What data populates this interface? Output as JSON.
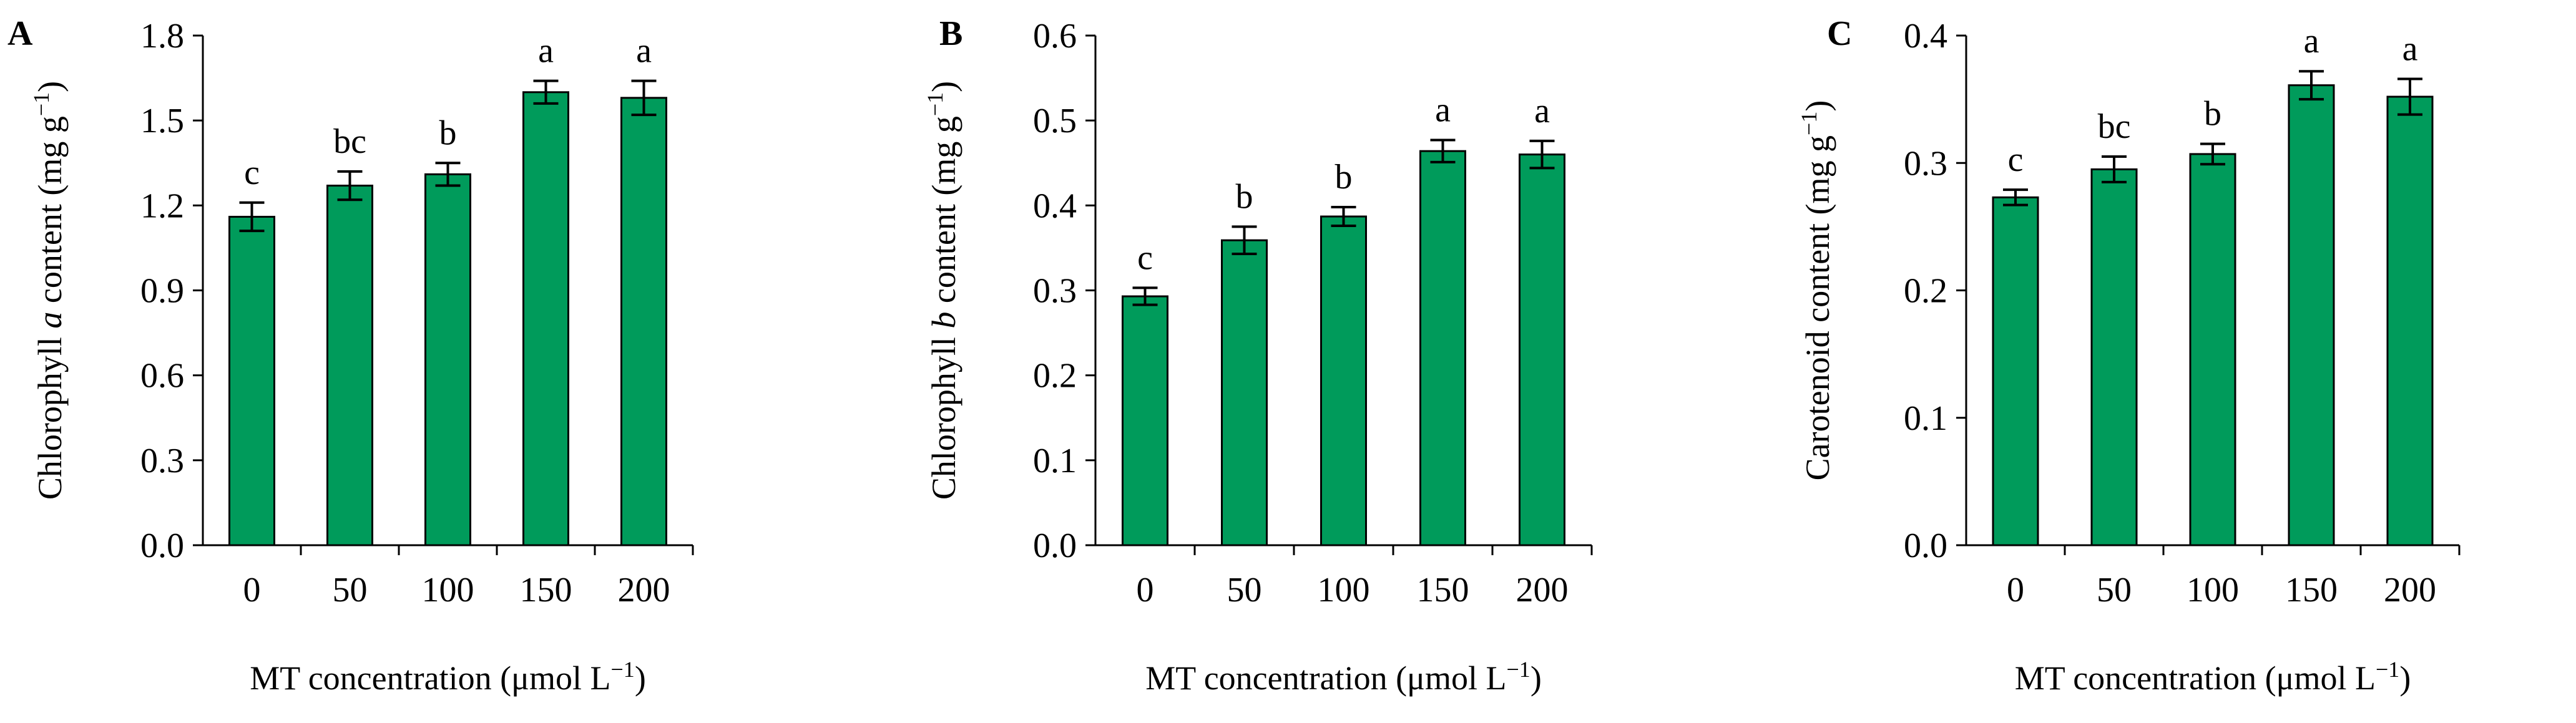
{
  "chart_data": [
    {
      "type": "bar",
      "panel": "A",
      "title": "",
      "xlabel": "MT concentration (μmol L⁻¹)",
      "ylabel_parts": [
        "Chlorophyll ",
        "a",
        " content (mg g",
        "−1",
        ")"
      ],
      "ylabel": "Chlorophyll a content (mg g−1)",
      "categories": [
        "0",
        "50",
        "100",
        "150",
        "200"
      ],
      "values": [
        1.16,
        1.27,
        1.31,
        1.6,
        1.58
      ],
      "errors": [
        0.05,
        0.05,
        0.04,
        0.04,
        0.06
      ],
      "letters": [
        "c",
        "bc",
        "b",
        "a",
        "a"
      ],
      "ylim": [
        0,
        1.8
      ],
      "yticks": [
        "0.0",
        "0.3",
        "0.6",
        "0.9",
        "1.2",
        "1.5",
        "1.8"
      ],
      "ytick_values": [
        0,
        0.3,
        0.6,
        0.9,
        1.2,
        1.5,
        1.8
      ]
    },
    {
      "type": "bar",
      "panel": "B",
      "title": "",
      "xlabel": "MT concentration (μmol L⁻¹)",
      "ylabel_parts": [
        "Chlorophyll ",
        "b",
        " content (mg g",
        "−1",
        ")"
      ],
      "ylabel": "Chlorophyll b content (mg g−1)",
      "categories": [
        "0",
        "50",
        "100",
        "150",
        "200"
      ],
      "values": [
        0.293,
        0.359,
        0.387,
        0.464,
        0.46
      ],
      "errors": [
        0.01,
        0.016,
        0.011,
        0.013,
        0.016
      ],
      "letters": [
        "c",
        "b",
        "b",
        "a",
        "a"
      ],
      "ylim": [
        0,
        0.6
      ],
      "yticks": [
        "0.0",
        "0.1",
        "0.2",
        "0.3",
        "0.4",
        "0.5",
        "0.6"
      ],
      "ytick_values": [
        0,
        0.1,
        0.2,
        0.3,
        0.4,
        0.5,
        0.6
      ]
    },
    {
      "type": "bar",
      "panel": "C",
      "title": "",
      "xlabel": "MT concentration (μmol L⁻¹)",
      "ylabel_parts": [
        "Carotenoid content (mg g",
        "−1",
        ")"
      ],
      "ylabel": "Carotenoid content (mg g−1)",
      "categories": [
        "0",
        "50",
        "100",
        "150",
        "200"
      ],
      "values": [
        0.273,
        0.295,
        0.307,
        0.361,
        0.352
      ],
      "errors": [
        0.006,
        0.01,
        0.008,
        0.011,
        0.014
      ],
      "letters": [
        "c",
        "bc",
        "b",
        "a",
        "a"
      ],
      "ylim": [
        0,
        0.4
      ],
      "yticks": [
        "0.0",
        "0.1",
        "0.2",
        "0.3",
        "0.4"
      ],
      "ytick_values": [
        0,
        0.1,
        0.2,
        0.3,
        0.4
      ]
    }
  ],
  "colors": {
    "bar_fill": "#009b5b",
    "axis": "#000000"
  }
}
